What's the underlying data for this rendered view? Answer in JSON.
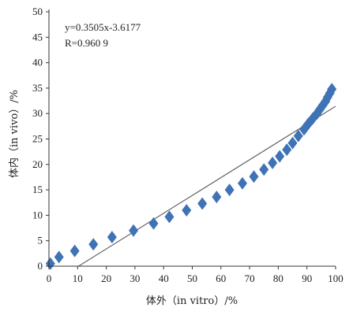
{
  "chart_data": {
    "type": "scatter",
    "xlabel": "体外（in vitro）/%",
    "ylabel": "体内（in vivo）/%",
    "xlim": [
      0,
      100
    ],
    "ylim": [
      0,
      50
    ],
    "x_ticks": [
      "0",
      "10",
      "20",
      "30",
      "40",
      "50",
      "60",
      "70",
      "80",
      "90",
      "100"
    ],
    "y_ticks": [
      "0",
      "5",
      "10",
      "15",
      "20",
      "25",
      "30",
      "35",
      "40",
      "45",
      "50"
    ],
    "annotation": {
      "equation": "y=0.3505x-3.6177",
      "r_value": "R=0.960 9"
    },
    "grid": false,
    "legend": "none",
    "marker": "diamond",
    "marker_color": "#3f73b5",
    "line_color": "#666666",
    "fit_line": {
      "slope": 0.3505,
      "intercept": -3.6177
    },
    "points": [
      {
        "x": 0.5,
        "y": 0.5
      },
      {
        "x": 3.5,
        "y": 1.8
      },
      {
        "x": 9,
        "y": 3.0
      },
      {
        "x": 15.5,
        "y": 4.3
      },
      {
        "x": 22,
        "y": 5.7
      },
      {
        "x": 29.5,
        "y": 7.0
      },
      {
        "x": 36.5,
        "y": 8.4
      },
      {
        "x": 42,
        "y": 9.7
      },
      {
        "x": 48,
        "y": 11.0
      },
      {
        "x": 53.5,
        "y": 12.3
      },
      {
        "x": 58.5,
        "y": 13.6
      },
      {
        "x": 63,
        "y": 15.0
      },
      {
        "x": 67.5,
        "y": 16.3
      },
      {
        "x": 71.5,
        "y": 17.6
      },
      {
        "x": 75,
        "y": 19.0
      },
      {
        "x": 78,
        "y": 20.3
      },
      {
        "x": 80.5,
        "y": 21.6
      },
      {
        "x": 83,
        "y": 22.9
      },
      {
        "x": 85,
        "y": 24.2
      },
      {
        "x": 87,
        "y": 25.6
      },
      {
        "x": 89,
        "y": 26.9
      },
      {
        "x": 90.5,
        "y": 28.0
      },
      {
        "x": 92,
        "y": 29.0
      },
      {
        "x": 93.5,
        "y": 30.0
      },
      {
        "x": 94.5,
        "y": 30.8
      },
      {
        "x": 95.5,
        "y": 31.6
      },
      {
        "x": 96.5,
        "y": 32.4
      },
      {
        "x": 97.2,
        "y": 33.2
      },
      {
        "x": 98,
        "y": 34.0
      },
      {
        "x": 98.7,
        "y": 34.8
      }
    ]
  }
}
